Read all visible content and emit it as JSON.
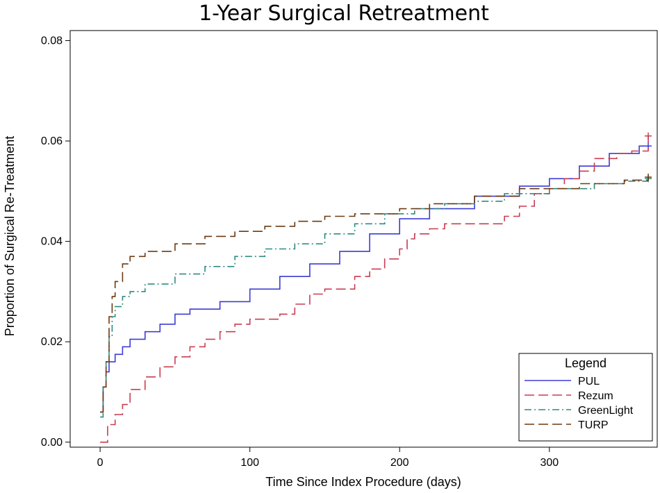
{
  "chart_data": {
    "type": "line",
    "title": "1-Year Surgical Retreatment",
    "xlabel": "Time Since Index Procedure (days)",
    "ylabel": "Proportion of Surgical Re-Treatment",
    "xlim": [
      -20,
      372
    ],
    "ylim": [
      -0.001,
      0.082
    ],
    "xticks": [
      0,
      100,
      200,
      300
    ],
    "xtick_labels": [
      "0",
      "100",
      "200",
      "300"
    ],
    "yticks": [
      0.0,
      0.02,
      0.04,
      0.06,
      0.08
    ],
    "ytick_labels": [
      "0.00",
      "0.02",
      "0.04",
      "0.06",
      "0.08"
    ],
    "grid": false,
    "legend": {
      "title": "Legend",
      "position": "bottom-right"
    },
    "series": [
      {
        "name": "PUL",
        "color": "#3b3bd6",
        "dash": "solid",
        "points": [
          [
            0,
            0.006
          ],
          [
            2,
            0.011
          ],
          [
            4,
            0.014
          ],
          [
            6,
            0.016
          ],
          [
            10,
            0.0175
          ],
          [
            15,
            0.019
          ],
          [
            20,
            0.0205
          ],
          [
            30,
            0.022
          ],
          [
            40,
            0.0235
          ],
          [
            50,
            0.0255
          ],
          [
            60,
            0.0265
          ],
          [
            80,
            0.028
          ],
          [
            100,
            0.0305
          ],
          [
            120,
            0.033
          ],
          [
            140,
            0.0355
          ],
          [
            160,
            0.038
          ],
          [
            180,
            0.0415
          ],
          [
            200,
            0.0445
          ],
          [
            220,
            0.0465
          ],
          [
            250,
            0.049
          ],
          [
            280,
            0.051
          ],
          [
            300,
            0.0525
          ],
          [
            320,
            0.055
          ],
          [
            340,
            0.0575
          ],
          [
            360,
            0.059
          ],
          [
            366,
            0.059
          ]
        ],
        "censor": [
          [
            366,
            0.059
          ]
        ]
      },
      {
        "name": "Rezum",
        "color": "#c83c50",
        "dash": "long-dash",
        "points": [
          [
            0,
            0.0
          ],
          [
            5,
            0.0035
          ],
          [
            10,
            0.0055
          ],
          [
            15,
            0.0075
          ],
          [
            20,
            0.0105
          ],
          [
            30,
            0.013
          ],
          [
            40,
            0.015
          ],
          [
            50,
            0.017
          ],
          [
            60,
            0.019
          ],
          [
            70,
            0.0205
          ],
          [
            80,
            0.022
          ],
          [
            90,
            0.0235
          ],
          [
            100,
            0.0245
          ],
          [
            120,
            0.0255
          ],
          [
            130,
            0.0275
          ],
          [
            140,
            0.0295
          ],
          [
            150,
            0.0305
          ],
          [
            165,
            0.0305
          ],
          [
            170,
            0.033
          ],
          [
            180,
            0.0345
          ],
          [
            190,
            0.0365
          ],
          [
            200,
            0.0385
          ],
          [
            205,
            0.0405
          ],
          [
            210,
            0.0415
          ],
          [
            220,
            0.0425
          ],
          [
            230,
            0.0435
          ],
          [
            260,
            0.0435
          ],
          [
            270,
            0.045
          ],
          [
            280,
            0.047
          ],
          [
            290,
            0.0495
          ],
          [
            300,
            0.0505
          ],
          [
            310,
            0.0525
          ],
          [
            320,
            0.054
          ],
          [
            330,
            0.0565
          ],
          [
            345,
            0.0575
          ],
          [
            355,
            0.058
          ],
          [
            366,
            0.061
          ]
        ],
        "censor": [
          [
            366,
            0.061
          ]
        ]
      },
      {
        "name": "GreenLight",
        "color": "#2e8a82",
        "dash": "dash-dot",
        "points": [
          [
            0,
            0.005
          ],
          [
            2,
            0.011
          ],
          [
            4,
            0.016
          ],
          [
            6,
            0.021
          ],
          [
            8,
            0.025
          ],
          [
            10,
            0.027
          ],
          [
            15,
            0.029
          ],
          [
            20,
            0.03
          ],
          [
            30,
            0.0315
          ],
          [
            50,
            0.0335
          ],
          [
            70,
            0.035
          ],
          [
            90,
            0.037
          ],
          [
            110,
            0.0385
          ],
          [
            130,
            0.0395
          ],
          [
            150,
            0.0415
          ],
          [
            170,
            0.0435
          ],
          [
            190,
            0.0455
          ],
          [
            210,
            0.0465
          ],
          [
            230,
            0.0475
          ],
          [
            250,
            0.048
          ],
          [
            270,
            0.0495
          ],
          [
            300,
            0.0505
          ],
          [
            330,
            0.0515
          ],
          [
            350,
            0.052
          ],
          [
            366,
            0.0525
          ]
        ],
        "censor": [
          [
            366,
            0.0525
          ]
        ]
      },
      {
        "name": "TURP",
        "color": "#6b3a12",
        "dash": "long-dash",
        "points": [
          [
            0,
            0.006
          ],
          [
            2,
            0.011
          ],
          [
            4,
            0.016
          ],
          [
            6,
            0.025
          ],
          [
            8,
            0.029
          ],
          [
            10,
            0.032
          ],
          [
            15,
            0.0355
          ],
          [
            20,
            0.037
          ],
          [
            30,
            0.038
          ],
          [
            50,
            0.0395
          ],
          [
            70,
            0.041
          ],
          [
            90,
            0.042
          ],
          [
            110,
            0.043
          ],
          [
            130,
            0.044
          ],
          [
            150,
            0.045
          ],
          [
            170,
            0.0455
          ],
          [
            200,
            0.0465
          ],
          [
            220,
            0.0475
          ],
          [
            250,
            0.049
          ],
          [
            280,
            0.0505
          ],
          [
            320,
            0.0515
          ],
          [
            350,
            0.0522
          ],
          [
            366,
            0.0528
          ]
        ],
        "censor": [
          [
            366,
            0.0528
          ]
        ]
      }
    ]
  }
}
